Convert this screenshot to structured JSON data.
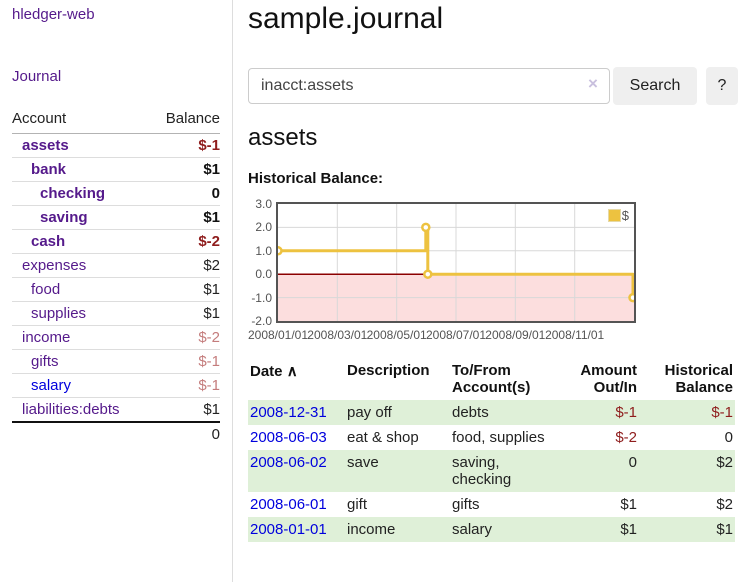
{
  "colors": {
    "link-purple": "#551a8b",
    "link-blue": "#0000dd",
    "neg-strong": "#8f1d1d",
    "neg-muted": "#c47c7c",
    "stripe-green": "#dff0d8",
    "chart-line": "#edc240",
    "chart-neg-fill": "#fcdede",
    "chart-zero": "#8b0000",
    "plot-border": "#545454",
    "grid": "#d8d8d8"
  },
  "icons": {
    "sort_asc": "∧",
    "clear": "×"
  },
  "sidebar": {
    "brand": "hledger-web",
    "nav_journal": "Journal",
    "accounts_table": {
      "header_account": "Account",
      "header_balance": "Balance",
      "rows": [
        {
          "name": "assets",
          "balance": "$-1",
          "depth": 1,
          "bold": true,
          "balance_style": "strong-neg"
        },
        {
          "name": "bank",
          "balance": "$1",
          "depth": 2,
          "bold": true,
          "balance_style": "strong"
        },
        {
          "name": "checking",
          "balance": "0",
          "depth": 3,
          "bold": true,
          "balance_style": "strong"
        },
        {
          "name": "saving",
          "balance": "$1",
          "depth": 3,
          "bold": true,
          "balance_style": "strong"
        },
        {
          "name": "cash",
          "balance": "$-2",
          "depth": 2,
          "bold": true,
          "balance_style": "strong-neg"
        },
        {
          "name": "expenses",
          "balance": "$2",
          "depth": 1,
          "bold": false,
          "balance_style": "plain"
        },
        {
          "name": "food",
          "balance": "$1",
          "depth": 2,
          "bold": false,
          "balance_style": "plain"
        },
        {
          "name": "supplies",
          "balance": "$1",
          "depth": 2,
          "bold": false,
          "balance_style": "plain"
        },
        {
          "name": "income",
          "balance": "$-2",
          "depth": 1,
          "bold": false,
          "balance_style": "neg"
        },
        {
          "name": "gifts",
          "balance": "$-1",
          "depth": 2,
          "bold": false,
          "balance_style": "neg"
        },
        {
          "name": "salary",
          "balance": "$-1",
          "depth": 2,
          "bold": false,
          "balance_style": "neg",
          "link_color": "blue"
        },
        {
          "name": "liabilities:debts",
          "balance": "$1",
          "depth": 1,
          "bold": false,
          "balance_style": "plain"
        }
      ],
      "total": "0"
    }
  },
  "main": {
    "title": "sample.journal",
    "search": {
      "value": "inacct:assets",
      "button_label": "Search",
      "help_label": "?"
    },
    "account_heading": "assets",
    "chart_label": "Historical Balance:"
  },
  "chart_data": {
    "type": "line",
    "step": true,
    "title": "Historical Balance of assets",
    "series": [
      {
        "name": "$",
        "points": [
          [
            "2008-01-01",
            1
          ],
          [
            "2008-06-01",
            2
          ],
          [
            "2008-06-03",
            0
          ],
          [
            "2008-12-31",
            -1
          ]
        ]
      }
    ],
    "xlim": [
      "2008-01-01",
      "2009-01-01"
    ],
    "ylim": [
      -2,
      3
    ],
    "y_ticks": [
      "3.0",
      "2.0",
      "1.0",
      "0.0",
      "-1.0",
      "-2.0"
    ],
    "x_ticks": [
      "2008/01/01",
      "2008/03/01",
      "2008/05/01",
      "2008/07/01",
      "2008/09/01",
      "2008/11/01"
    ],
    "legend": [
      "$"
    ],
    "legend_position": "top-right",
    "grid": true,
    "negative_region_shaded": true
  },
  "register_table": {
    "headers": [
      "Date",
      "Description",
      "To/From\nAccount(s)",
      "Amount\nOut/In",
      "Historical\nBalance"
    ],
    "rows": [
      {
        "date": "2008-12-31",
        "description": "pay off",
        "accounts": "debts",
        "amount": "$-1",
        "amount_neg": true,
        "balance": "$-1",
        "balance_neg": true
      },
      {
        "date": "2008-06-03",
        "description": "eat & shop",
        "accounts": "food, supplies",
        "amount": "$-2",
        "amount_neg": true,
        "balance": "0",
        "balance_neg": false
      },
      {
        "date": "2008-06-02",
        "description": "save",
        "accounts": "saving,\nchecking",
        "amount": "0",
        "amount_neg": false,
        "balance": "$2",
        "balance_neg": false
      },
      {
        "date": "2008-06-01",
        "description": "gift",
        "accounts": "gifts",
        "amount": "$1",
        "amount_neg": false,
        "balance": "$2",
        "balance_neg": false
      },
      {
        "date": "2008-01-01",
        "description": "income",
        "accounts": "salary",
        "amount": "$1",
        "amount_neg": false,
        "balance": "$1",
        "balance_neg": false
      }
    ]
  }
}
